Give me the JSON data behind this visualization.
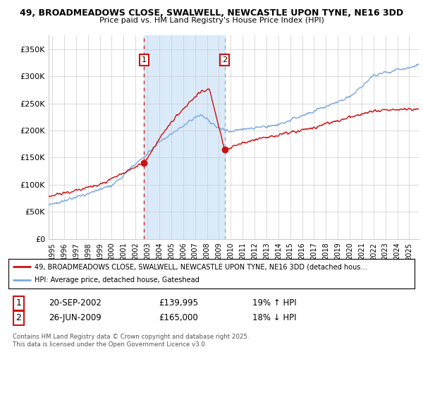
{
  "title1": "49, BROADMEADOWS CLOSE, SWALWELL, NEWCASTLE UPON TYNE, NE16 3DD",
  "title2": "Price paid vs. HM Land Registry's House Price Index (HPI)",
  "ylabel_ticks": [
    "£0",
    "£50K",
    "£100K",
    "£150K",
    "£200K",
    "£250K",
    "£300K",
    "£350K"
  ],
  "ytick_vals": [
    0,
    50000,
    100000,
    150000,
    200000,
    250000,
    300000,
    350000
  ],
  "ylim": [
    0,
    375000
  ],
  "xlim_start": 1994.7,
  "xlim_end": 2025.8,
  "hpi_color": "#7aaadd",
  "paid_color": "#cc1111",
  "sale1_x": 2002.72,
  "sale1_y": 139995,
  "sale2_x": 2009.49,
  "sale2_y": 165000,
  "shade_color": "#daeaf8",
  "legend_line1": "49, BROADMEADOWS CLOSE, SWALWELL, NEWCASTLE UPON TYNE, NE16 3DD (detached hous…",
  "legend_line2": "HPI: Average price, detached house, Gateshead",
  "table_rows": [
    {
      "num": "1",
      "date": "20-SEP-2002",
      "price": "£139,995",
      "hpi": "19% ↑ HPI"
    },
    {
      "num": "2",
      "date": "26-JUN-2009",
      "price": "£165,000",
      "hpi": "18% ↓ HPI"
    }
  ],
  "footnote": "Contains HM Land Registry data © Crown copyright and database right 2025.\nThis data is licensed under the Open Government Licence v3.0.",
  "background_color": "#ffffff",
  "grid_color": "#cccccc"
}
